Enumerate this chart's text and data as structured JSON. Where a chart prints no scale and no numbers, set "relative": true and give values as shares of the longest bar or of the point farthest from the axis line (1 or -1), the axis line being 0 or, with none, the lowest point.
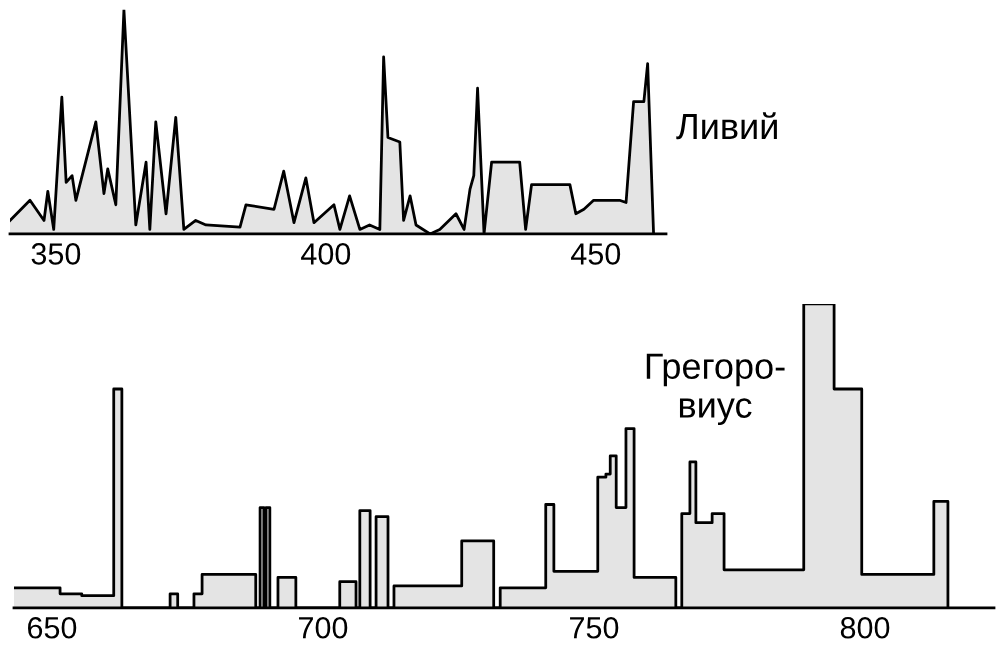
{
  "chart_data": [
    {
      "type": "area",
      "relative": true,
      "annotations": [
        "Ливий"
      ],
      "xlim": [
        341.5,
        463
      ],
      "xticks": [
        350,
        400,
        450
      ],
      "x": [
        341.5,
        345.2,
        347.8,
        348.5,
        349.6,
        351.1,
        351.9,
        353.0,
        353.7,
        357.4,
        358.9,
        359.6,
        361.1,
        362.6,
        364.8,
        366.7,
        367.4,
        368.5,
        370.4,
        372.2,
        373.7,
        375.9,
        377.8,
        384.1,
        385.2,
        390.4,
        392.2,
        394.1,
        396.3,
        397.8,
        401.5,
        402.6,
        404.4,
        406.3,
        408.1,
        410.0,
        410.7,
        411.5,
        413.7,
        414.4,
        415.6,
        416.7,
        419.3,
        421.1,
        424.1,
        425.6,
        426.7,
        427.4,
        428.1,
        429.3,
        430.7,
        435.9,
        437.0,
        438.1,
        445.2,
        446.3,
        447.8,
        449.6,
        454.4,
        455.6,
        457.0,
        458.9,
        459.6,
        460.7
      ],
      "series": [
        {
          "color": "#000000",
          "values": [
            0.06,
            0.15,
            0.06,
            0.19,
            0.02,
            0.61,
            0.23,
            0.26,
            0.15,
            0.5,
            0.18,
            0.29,
            0.13,
            1.0,
            0.04,
            0.32,
            0.02,
            0.5,
            0.09,
            0.52,
            0.02,
            0.06,
            0.04,
            0.03,
            0.13,
            0.11,
            0.28,
            0.05,
            0.25,
            0.05,
            0.13,
            0.02,
            0.17,
            0.02,
            0.04,
            0.02,
            0.79,
            0.43,
            0.41,
            0.06,
            0.17,
            0.04,
            0.0,
            0.02,
            0.09,
            0.02,
            0.2,
            0.26,
            0.65,
            0.0,
            0.32,
            0.32,
            0.02,
            0.22,
            0.22,
            0.09,
            0.11,
            0.15,
            0.15,
            0.14,
            0.59,
            0.59,
            0.76,
            0.0
          ]
        }
      ]
    },
    {
      "type": "step",
      "relative": true,
      "annotations": [
        "Грегоро-виус"
      ],
      "xlim": [
        643,
        823.8
      ],
      "xticks": [
        650,
        700,
        750,
        800
      ],
      "x": [
        643,
        651.5,
        655.5,
        661.4,
        662.9,
        671.8,
        673.2,
        676.2,
        677.7,
        687.6,
        688.4,
        689.1,
        689.5,
        690.2,
        691.7,
        695.0,
        703.1,
        706.1,
        706.8,
        707.9,
        708.7,
        709.8,
        712.0,
        713.1,
        725.6,
        731.5,
        732.7,
        741.1,
        742.6,
        750.7,
        752.2,
        753.0,
        754.1,
        755.9,
        757.4,
        765.1,
        766.2,
        767.7,
        768.8,
        771.8,
        774.0,
        788.7,
        794.3,
        799.4,
        812.7,
        815.3
      ],
      "color": "#000000",
      "values": [
        0.066,
        0.046,
        0.04,
        0.72,
        0,
        0.046,
        0,
        0.046,
        0.11,
        0,
        0.33,
        0,
        0.33,
        0,
        0.1,
        0,
        0.086,
        0,
        0.32,
        0.32,
        0,
        0.3,
        0,
        0.072,
        0.22,
        0,
        0.066,
        0.34,
        0.12,
        0.43,
        0.44,
        0.5,
        0.33,
        0.59,
        0.1,
        0,
        0.31,
        0.48,
        0.28,
        0.31,
        0.125,
        1.0,
        0.72,
        0.11,
        0.35,
        0
      ]
    }
  ]
}
